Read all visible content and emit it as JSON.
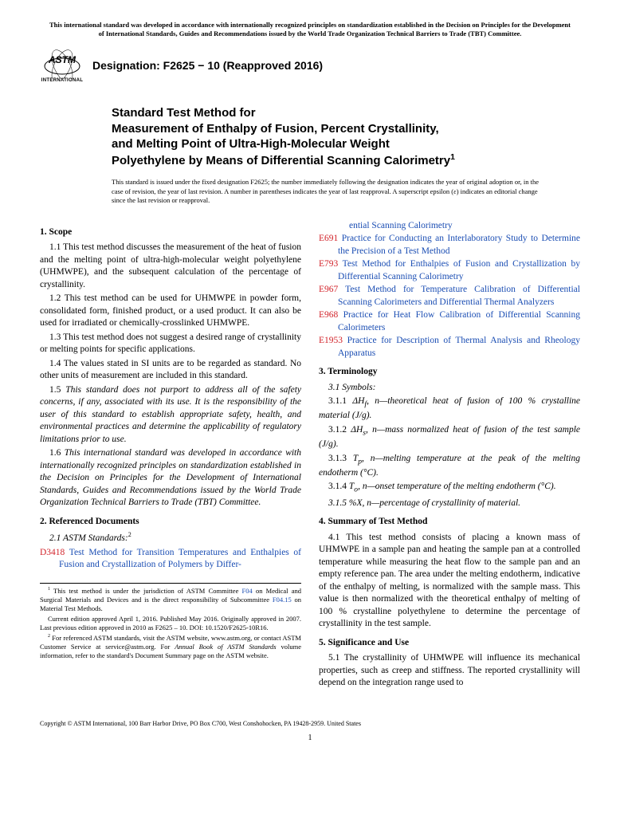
{
  "top_notice": "This international standard was developed in accordance with internationally recognized principles on standardization established in the Decision on Principles for the Development of International Standards, Guides and Recommendations issued by the World Trade Organization Technical Barriers to Trade (TBT) Committee.",
  "logo_label": "INTERNATIONAL",
  "designation": "Designation: F2625 − 10 (Reapproved 2016)",
  "title_l1": "Standard Test Method for",
  "title_l2": "Measurement of Enthalpy of Fusion, Percent Crystallinity,",
  "title_l3": "and Melting Point of Ultra-High-Molecular Weight",
  "title_l4": "Polyethylene by Means of Differential Scanning Calorimetry",
  "title_sup": "1",
  "issuance": "This standard is issued under the fixed designation F2625; the number immediately following the designation indicates the year of original adoption or, in the case of revision, the year of last revision. A number in parentheses indicates the year of last reapproval. A superscript epsilon (ε) indicates an editorial change since the last revision or reapproval.",
  "s1_heading": "1. Scope",
  "s1_1": "1.1 This test method discusses the measurement of the heat of fusion and the melting point of ultra-high-molecular weight polyethylene (UHMWPE), and the subsequent calculation of the percentage of crystallinity.",
  "s1_2": "1.2 This test method can be used for UHMWPE in powder form, consolidated form, finished product, or a used product. It can also be used for irradiated or chemically-crosslinked UHMWPE.",
  "s1_3": "1.3 This test method does not suggest a desired range of crystallinity or melting points for specific applications.",
  "s1_4": "1.4 The values stated in SI units are to be regarded as standard. No other units of measurement are included in this standard.",
  "s1_5": "1.5 This standard does not purport to address all of the safety concerns, if any, associated with its use. It is the responsibility of the user of this standard to establish appropriate safety, health, and environmental practices and determine the applicability of regulatory limitations prior to use.",
  "s1_6": "1.6 This international standard was developed in accordance with internationally recognized principles on standardization established in the Decision on Principles for the Development of International Standards, Guides and Recommendations issued by the World Trade Organization Technical Barriers to Trade (TBT) Committee.",
  "s2_heading": "2. Referenced Documents",
  "s2_sub": "2.1 ASTM Standards:",
  "s2_sup": "2",
  "ref_d3418_code": "D3418",
  "ref_d3418_title": " Test Method for Transition Temperatures and Enthalpies of Fusion and Crystallization of Polymers by Differ-",
  "ref_d3418_cont": "ential Scanning Calorimetry",
  "ref_e691_code": "E691",
  "ref_e691_title": " Practice for Conducting an Interlaboratory Study to Determine the Precision of a Test Method",
  "ref_e793_code": "E793",
  "ref_e793_title": " Test Method for Enthalpies of Fusion and Crystallization by Differential Scanning Calorimetry",
  "ref_e967_code": "E967",
  "ref_e967_title": " Test Method for Temperature Calibration of Differential Scanning Calorimeters and Differential Thermal Analyzers",
  "ref_e968_code": "E968",
  "ref_e968_title": " Practice for Heat Flow Calibration of Differential Scanning Calorimeters",
  "ref_e1953_code": "E1953",
  "ref_e1953_title": " Practice for Description of Thermal Analysis and Rheology Apparatus",
  "s3_heading": "3. Terminology",
  "s3_sub": "3.1 Symbols:",
  "s3_1_1_a": "3.1.1 ",
  "s3_1_1_sym": "ΔH",
  "s3_1_1_sub": "f",
  "s3_1_1_b": ", n—theoretical heat of fusion of 100 % crystalline material (J/g).",
  "s3_1_2_a": "3.1.2 ",
  "s3_1_2_sym": "ΔH",
  "s3_1_2_sub": "s",
  "s3_1_2_b": ", n—mass normalized heat of fusion of the test sample (J/g).",
  "s3_1_3_a": "3.1.3 ",
  "s3_1_3_sym": "T",
  "s3_1_3_sub": "p",
  "s3_1_3_b": ", n—melting temperature at the peak of the melting endotherm (°C).",
  "s3_1_4_a": "3.1.4 ",
  "s3_1_4_sym": "T",
  "s3_1_4_sub": "o",
  "s3_1_4_b": ", n—onset temperature of the melting endotherm (°C).",
  "s3_1_5": "3.1.5 %X, n—percentage of crystallinity of material.",
  "s4_heading": "4. Summary of Test Method",
  "s4_1": "4.1 This test method consists of placing a known mass of UHMWPE in a sample pan and heating the sample pan at a controlled temperature while measuring the heat flow to the sample pan and an empty reference pan. The area under the melting endotherm, indicative of the enthalpy of melting, is normalized with the sample mass. This value is then normalized with the theoretical enthalpy of melting of 100 % crystalline polyethylene to determine the percentage of crystallinity in the test sample.",
  "s5_heading": "5. Significance and Use",
  "s5_1": "5.1 The crystallinity of UHMWPE will influence its mechanical properties, such as creep and stiffness. The reported crystallinity will depend on the integration range used to",
  "fn1_a": " This test method is under the jurisdiction of ASTM Committee ",
  "fn1_link1": "F04",
  "fn1_b": " on Medical and Surgical Materials and Devices and is the direct responsibility of Subcommittee ",
  "fn1_link2": "F04.15",
  "fn1_c": " on Material Test Methods.",
  "fn1_d": "Current edition approved April 1, 2016. Published May 2016. Originally approved in 2007. Last previous edition approved in 2010 as F2625 – 10. DOI: 10.1520/F2625-10R16.",
  "fn2_a": " For referenced ASTM standards, visit the ASTM website, www.astm.org, or contact ASTM Customer Service at service@astm.org. For ",
  "fn2_b": "Annual Book of ASTM Standards",
  "fn2_c": " volume information, refer to the standard's Document Summary page on the ASTM website.",
  "copyright": "Copyright © ASTM International, 100 Barr Harbor Drive, PO Box C700, West Conshohocken, PA 19428-2959. United States",
  "pagenum": "1",
  "colors": {
    "ref_code": "#d2232a",
    "ref_title": "#1a4db3",
    "text": "#000000",
    "bg": "#ffffff"
  }
}
